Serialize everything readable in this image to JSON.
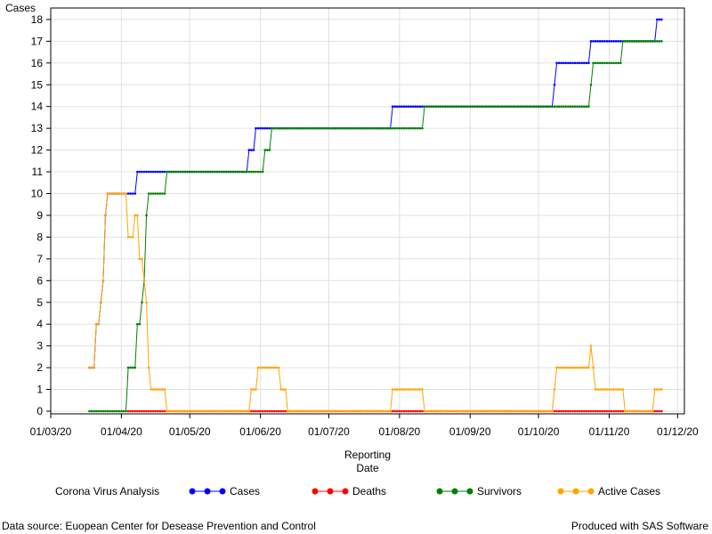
{
  "chart_data": {
    "type": "line",
    "ylabel": "Cases",
    "xlabel_line1": "Reporting",
    "xlabel_line2": "Date",
    "legend_title": "Corona Virus Analysis",
    "ylim": [
      0,
      18
    ],
    "xlim": [
      "2020-03-01",
      "2020-12-04"
    ],
    "x_ticks": [
      "01/03/20",
      "01/04/20",
      "01/05/20",
      "01/06/20",
      "01/07/20",
      "01/08/20",
      "01/09/20",
      "01/10/20",
      "01/11/20",
      "01/12/20"
    ],
    "y_ticks": [
      0,
      1,
      2,
      3,
      4,
      5,
      6,
      7,
      8,
      9,
      10,
      11,
      12,
      13,
      14,
      15,
      16,
      17,
      18
    ],
    "grid": true,
    "legend_position": "bottom",
    "series": [
      {
        "name": "Cases",
        "color": "#0000ff",
        "steps": [
          [
            "2020-03-18",
            2
          ],
          [
            "2020-03-21",
            4
          ],
          [
            "2020-03-23",
            5
          ],
          [
            "2020-03-24",
            6
          ],
          [
            "2020-03-25",
            9
          ],
          [
            "2020-03-26",
            10
          ],
          [
            "2020-04-08",
            11
          ],
          [
            "2020-05-27",
            12
          ],
          [
            "2020-05-30",
            13
          ],
          [
            "2020-07-29",
            14
          ],
          [
            "2020-10-08",
            15
          ],
          [
            "2020-10-09",
            16
          ],
          [
            "2020-10-24",
            17
          ],
          [
            "2020-11-22",
            18
          ]
        ],
        "end": "2020-11-24"
      },
      {
        "name": "Deaths",
        "color": "#ff0000",
        "steps": [
          [
            "2020-04-04",
            0
          ]
        ],
        "end": "2020-11-24"
      },
      {
        "name": "Survivors",
        "color": "#008000",
        "steps": [
          [
            "2020-03-18",
            0
          ],
          [
            "2020-04-04",
            2
          ],
          [
            "2020-04-08",
            4
          ],
          [
            "2020-04-10",
            5
          ],
          [
            "2020-04-11",
            6
          ],
          [
            "2020-04-12",
            9
          ],
          [
            "2020-04-13",
            10
          ],
          [
            "2020-04-21",
            11
          ],
          [
            "2020-06-03",
            12
          ],
          [
            "2020-06-06",
            13
          ],
          [
            "2020-08-12",
            14
          ],
          [
            "2020-10-24",
            15
          ],
          [
            "2020-10-25",
            16
          ],
          [
            "2020-11-07",
            17
          ]
        ],
        "end": "2020-11-24"
      },
      {
        "name": "Active Cases",
        "color": "#ffa500",
        "steps": [
          [
            "2020-03-18",
            2
          ],
          [
            "2020-03-21",
            4
          ],
          [
            "2020-03-23",
            5
          ],
          [
            "2020-03-24",
            6
          ],
          [
            "2020-03-25",
            9
          ],
          [
            "2020-03-26",
            10
          ],
          [
            "2020-04-04",
            8
          ],
          [
            "2020-04-07",
            9
          ],
          [
            "2020-04-09",
            7
          ],
          [
            "2020-04-11",
            6
          ],
          [
            "2020-04-12",
            5
          ],
          [
            "2020-04-13",
            2
          ],
          [
            "2020-04-14",
            1
          ],
          [
            "2020-04-21",
            0
          ],
          [
            "2020-05-28",
            1
          ],
          [
            "2020-05-31",
            2
          ],
          [
            "2020-06-10",
            1
          ],
          [
            "2020-06-13",
            0
          ],
          [
            "2020-07-29",
            1
          ],
          [
            "2020-08-12",
            0
          ],
          [
            "2020-10-08",
            1
          ],
          [
            "2020-10-09",
            2
          ],
          [
            "2020-10-24",
            3
          ],
          [
            "2020-10-25",
            2
          ],
          [
            "2020-10-26",
            1
          ],
          [
            "2020-11-08",
            0
          ],
          [
            "2020-11-21",
            1
          ]
        ],
        "end": "2020-11-24"
      }
    ]
  },
  "footnote_left": "Data source: Euopean Center for Desease Prevention and Control",
  "footnote_right": "Produced with SAS Software"
}
